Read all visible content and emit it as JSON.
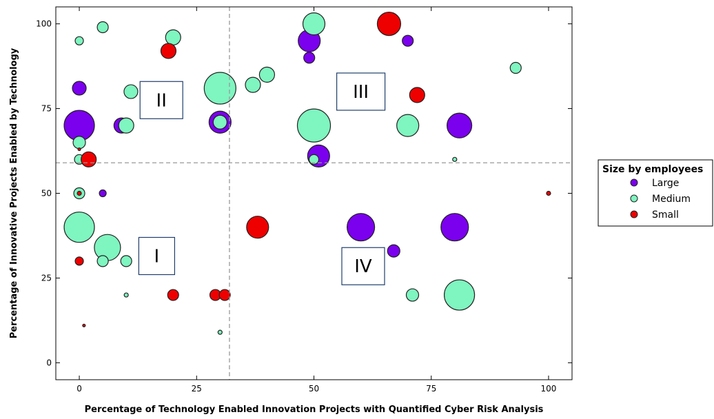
{
  "chart_data": {
    "type": "scatter",
    "title": "",
    "xlabel": "Percentage of Technology Enabled Innovation Projects with Quantified Cyber Risk Analysis",
    "ylabel": "Percentage of Innovative Projects Enabled by Technology",
    "xlim": [
      -5,
      105
    ],
    "ylim": [
      -5,
      105
    ],
    "xticks": [
      0,
      25,
      50,
      75,
      100
    ],
    "yticks": [
      0,
      25,
      50,
      75,
      100
    ],
    "grid": false,
    "reference_lines": {
      "x": 32,
      "y": 59
    },
    "quadrant_labels": [
      {
        "label": "I",
        "x": 16.5,
        "y": 31.5
      },
      {
        "label": "II",
        "x": 17.5,
        "y": 77.5
      },
      {
        "label": "III",
        "x": 60,
        "y": 80
      },
      {
        "label": "IV",
        "x": 60.5,
        "y": 28.5
      }
    ],
    "legend": {
      "title": "Size by employees",
      "placement": "right",
      "entries": [
        {
          "name": "Large",
          "color": "#7b00ee"
        },
        {
          "name": "Medium",
          "color": "#7ff5c0"
        },
        {
          "name": "Small",
          "color": "#ee0000"
        }
      ]
    },
    "series": [
      {
        "name": "Large",
        "color": "#7b00ee",
        "points": [
          {
            "x": 0,
            "y": 70,
            "size": 22
          },
          {
            "x": 0,
            "y": 81,
            "size": 10
          },
          {
            "x": 9,
            "y": 70,
            "size": 11
          },
          {
            "x": 30,
            "y": 71,
            "size": 16
          },
          {
            "x": 5,
            "y": 50,
            "size": 5
          },
          {
            "x": 49,
            "y": 95,
            "size": 16
          },
          {
            "x": 49,
            "y": 90,
            "size": 8
          },
          {
            "x": 70,
            "y": 95,
            "size": 8
          },
          {
            "x": 51,
            "y": 61,
            "size": 16
          },
          {
            "x": 81,
            "y": 70,
            "size": 18
          },
          {
            "x": 60,
            "y": 40,
            "size": 20
          },
          {
            "x": 80,
            "y": 40,
            "size": 20
          },
          {
            "x": 67,
            "y": 33,
            "size": 9
          }
        ]
      },
      {
        "name": "Medium",
        "color": "#7ff5c0",
        "points": [
          {
            "x": 0,
            "y": 95,
            "size": 6
          },
          {
            "x": 5,
            "y": 99,
            "size": 8
          },
          {
            "x": 20,
            "y": 96,
            "size": 11
          },
          {
            "x": 11,
            "y": 80,
            "size": 10
          },
          {
            "x": 30,
            "y": 81,
            "size": 23
          },
          {
            "x": 37,
            "y": 82,
            "size": 11
          },
          {
            "x": 40,
            "y": 85,
            "size": 11
          },
          {
            "x": 50,
            "y": 100,
            "size": 16
          },
          {
            "x": 93,
            "y": 87,
            "size": 8
          },
          {
            "x": 10,
            "y": 70,
            "size": 11
          },
          {
            "x": 30,
            "y": 71,
            "size": 10
          },
          {
            "x": 50,
            "y": 70,
            "size": 24
          },
          {
            "x": 70,
            "y": 70,
            "size": 16
          },
          {
            "x": 0,
            "y": 65,
            "size": 9
          },
          {
            "x": 0,
            "y": 60,
            "size": 7
          },
          {
            "x": 50,
            "y": 60,
            "size": 7
          },
          {
            "x": 80,
            "y": 60,
            "size": 3
          },
          {
            "x": 0,
            "y": 50,
            "size": 8
          },
          {
            "x": 0,
            "y": 40,
            "size": 22
          },
          {
            "x": 6,
            "y": 34,
            "size": 19
          },
          {
            "x": 5,
            "y": 30,
            "size": 8
          },
          {
            "x": 10,
            "y": 30,
            "size": 8
          },
          {
            "x": 10,
            "y": 20,
            "size": 3
          },
          {
            "x": 30,
            "y": 9,
            "size": 3
          },
          {
            "x": 71,
            "y": 20,
            "size": 9
          },
          {
            "x": 81,
            "y": 20,
            "size": 22
          }
        ]
      },
      {
        "name": "Small",
        "color": "#ee0000",
        "points": [
          {
            "x": 19,
            "y": 92,
            "size": 11
          },
          {
            "x": 66,
            "y": 100,
            "size": 17
          },
          {
            "x": 72,
            "y": 79,
            "size": 11
          },
          {
            "x": 2,
            "y": 60,
            "size": 11
          },
          {
            "x": 0,
            "y": 63,
            "size": 2
          },
          {
            "x": 0,
            "y": 50,
            "size": 3
          },
          {
            "x": 100,
            "y": 50,
            "size": 3
          },
          {
            "x": 38,
            "y": 40,
            "size": 16
          },
          {
            "x": 0,
            "y": 30,
            "size": 6
          },
          {
            "x": 20,
            "y": 20,
            "size": 8
          },
          {
            "x": 29,
            "y": 20,
            "size": 8
          },
          {
            "x": 31,
            "y": 20,
            "size": 8
          },
          {
            "x": 1,
            "y": 11,
            "size": 2
          }
        ]
      }
    ]
  }
}
